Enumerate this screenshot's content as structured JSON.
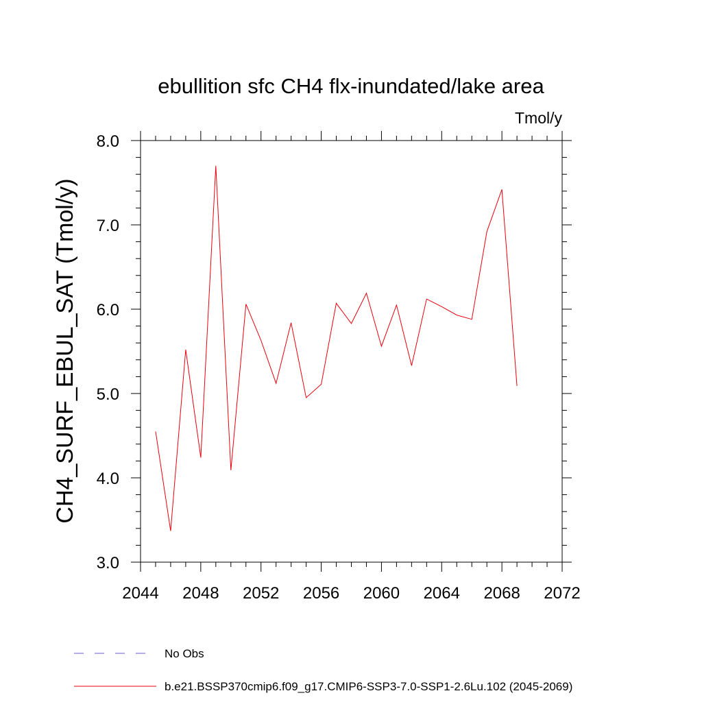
{
  "chart_data": {
    "type": "line",
    "title": "ebullition sfc CH4 flx-inundated/lake area",
    "units": "Tmol/y",
    "xlabel": "",
    "ylabel": "CH4_SURF_EBUL_SAT  (Tmol/y)",
    "xlim": [
      2044,
      2072
    ],
    "ylim": [
      3.0,
      8.0
    ],
    "x_ticks": [
      2044,
      2048,
      2052,
      2056,
      2060,
      2064,
      2068,
      2072
    ],
    "x_tick_labels": [
      "2044",
      "2048",
      "2052",
      "2056",
      "2060",
      "2064",
      "2068",
      "2072"
    ],
    "y_ticks": [
      3.0,
      4.0,
      5.0,
      6.0,
      7.0,
      8.0
    ],
    "y_tick_labels": [
      "3.0",
      "4.0",
      "5.0",
      "6.0",
      "7.0",
      "8.0"
    ],
    "x": [
      2045,
      2046,
      2047,
      2048,
      2049,
      2050,
      2051,
      2052,
      2053,
      2054,
      2055,
      2056,
      2057,
      2058,
      2059,
      2060,
      2061,
      2062,
      2063,
      2064,
      2065,
      2066,
      2067,
      2068,
      2069
    ],
    "series": [
      {
        "name": "b.e21.BSSP370cmip6.f09_g17.CMIP6-SSP3-7.0-SSP1-2.6Lu.102 (2045-2069)",
        "color": "#e8000b",
        "values": [
          4.55,
          3.37,
          5.52,
          4.24,
          7.7,
          4.09,
          6.06,
          5.63,
          5.12,
          5.84,
          4.95,
          5.11,
          6.07,
          5.83,
          6.19,
          5.56,
          6.05,
          5.33,
          6.12,
          6.03,
          5.93,
          5.88,
          6.92,
          7.42,
          5.09
        ]
      }
    ],
    "legend": {
      "placement": "bottom",
      "entries": [
        {
          "label": "No Obs",
          "color": "#6a5acd",
          "style": "dashed"
        },
        {
          "label": "b.e21.BSSP370cmip6.f09_g17.CMIP6-SSP3-7.0-SSP1-2.6Lu.102 (2045-2069)",
          "color": "#e8000b",
          "style": "solid"
        }
      ]
    },
    "grid": false
  }
}
